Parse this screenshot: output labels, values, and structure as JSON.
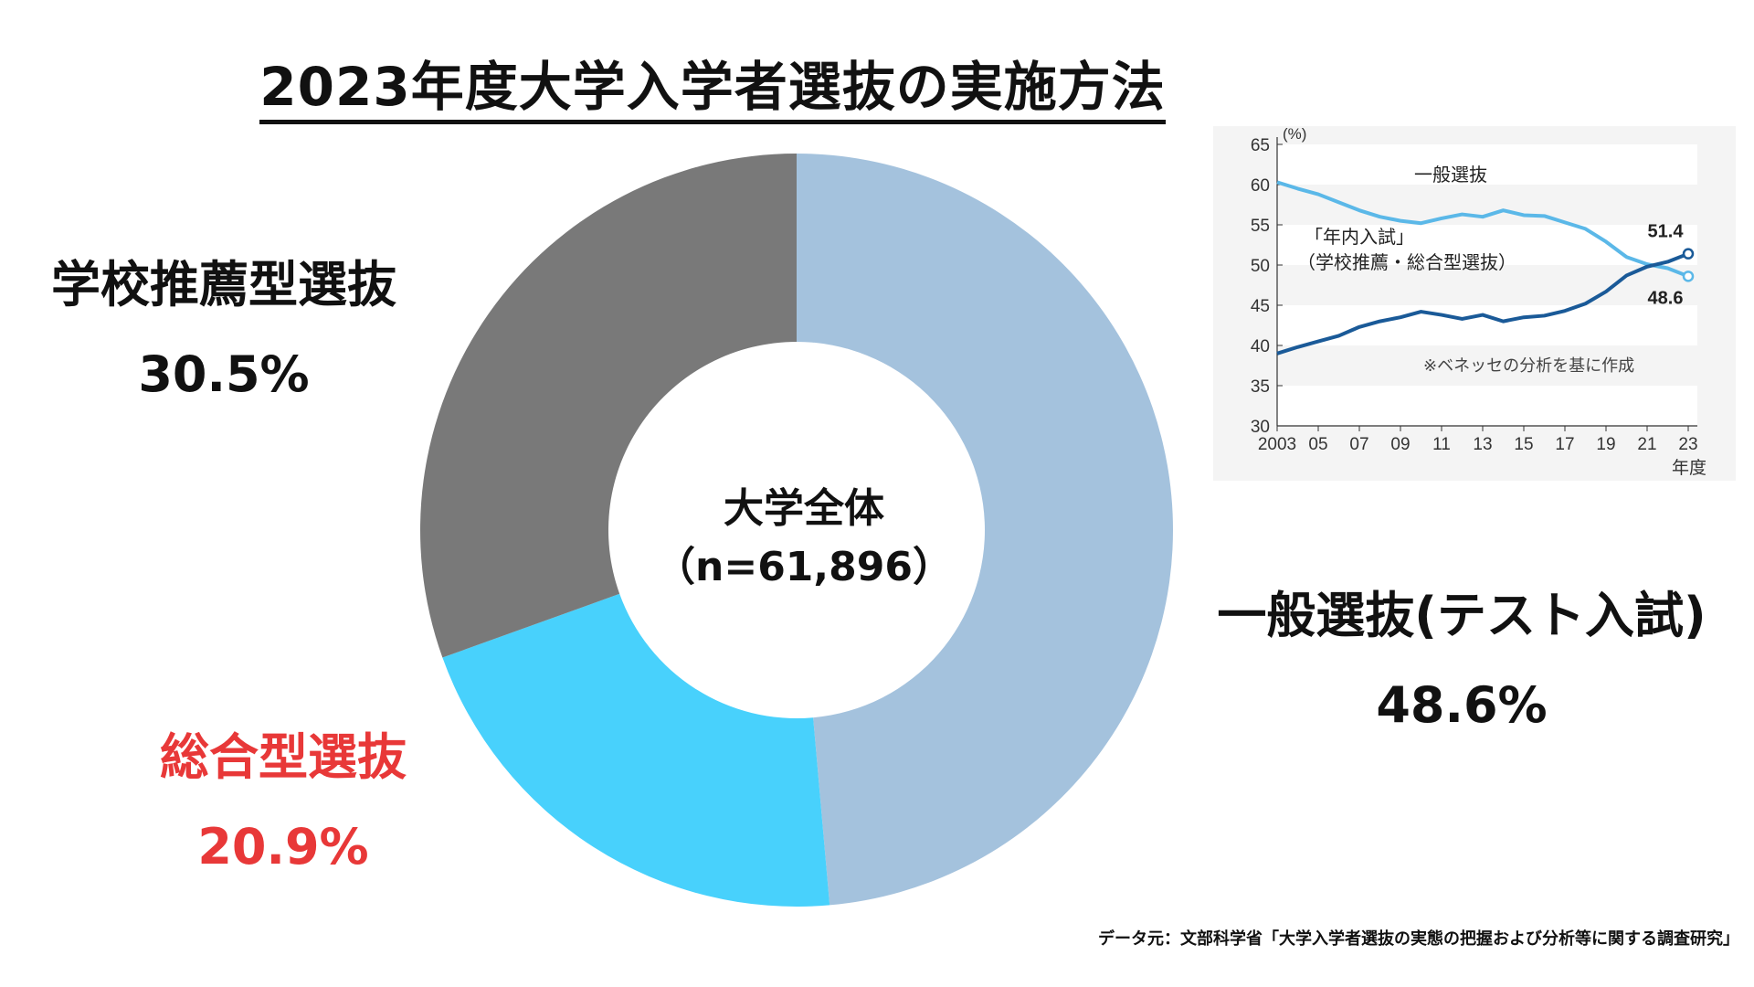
{
  "title": "2023年度大学入学者選抜の実施方法",
  "center": {
    "line1": "大学全体",
    "line2": "（n=61,896）"
  },
  "source": "データ元：文部科学省「大学入学者選抜の実態の把握および分析等に関する調査研究」",
  "colors": {
    "ippan": "#a4c2dd",
    "sogo": "#48d1fc",
    "gakko": "#797979",
    "sogo_text": "#e83838",
    "line_ippan": "#5bb8e8",
    "line_nennai": "#1a5a98"
  },
  "chart_data": [
    {
      "type": "pie",
      "title": "2023年度大学入学者選抜の実施方法",
      "slices": [
        {
          "name": "一般選抜(テスト入試)",
          "value": 48.6,
          "label": "48.6%"
        },
        {
          "name": "総合型選抜",
          "value": 20.9,
          "label": "20.9%"
        },
        {
          "name": "学校推薦型選抜",
          "value": 30.5,
          "label": "30.5%"
        }
      ]
    },
    {
      "type": "line",
      "ylabel": "(%)",
      "xlabel": "年度",
      "ylim": [
        30,
        65
      ],
      "yticks": [
        "30",
        "35",
        "40",
        "45",
        "50",
        "55",
        "60",
        "65"
      ],
      "xticks": [
        "2003",
        "05",
        "07",
        "09",
        "11",
        "13",
        "15",
        "17",
        "19",
        "21",
        "23"
      ],
      "grid": "bands",
      "x": [
        2003,
        2004,
        2005,
        2006,
        2007,
        2008,
        2009,
        2010,
        2011,
        2012,
        2013,
        2014,
        2015,
        2016,
        2017,
        2018,
        2019,
        2020,
        2021,
        2022,
        2023
      ],
      "series": [
        {
          "name": "一般選抜",
          "values": [
            60.3,
            59.5,
            58.8,
            57.8,
            56.8,
            56.0,
            55.5,
            55.2,
            55.8,
            56.3,
            56.0,
            56.8,
            56.2,
            56.1,
            55.3,
            54.5,
            52.9,
            51.0,
            50.1,
            49.6,
            48.6
          ]
        },
        {
          "name": "「年内入試」（学校推薦・総合型選抜）",
          "values": [
            39.0,
            39.8,
            40.5,
            41.2,
            42.3,
            43.0,
            43.5,
            44.2,
            43.8,
            43.3,
            43.8,
            43.0,
            43.5,
            43.7,
            44.3,
            45.2,
            46.7,
            48.7,
            49.8,
            50.4,
            51.4
          ]
        }
      ],
      "annotations": [
        "51.4",
        "48.6",
        "※ベネッセの分析を基に作成"
      ]
    }
  ]
}
